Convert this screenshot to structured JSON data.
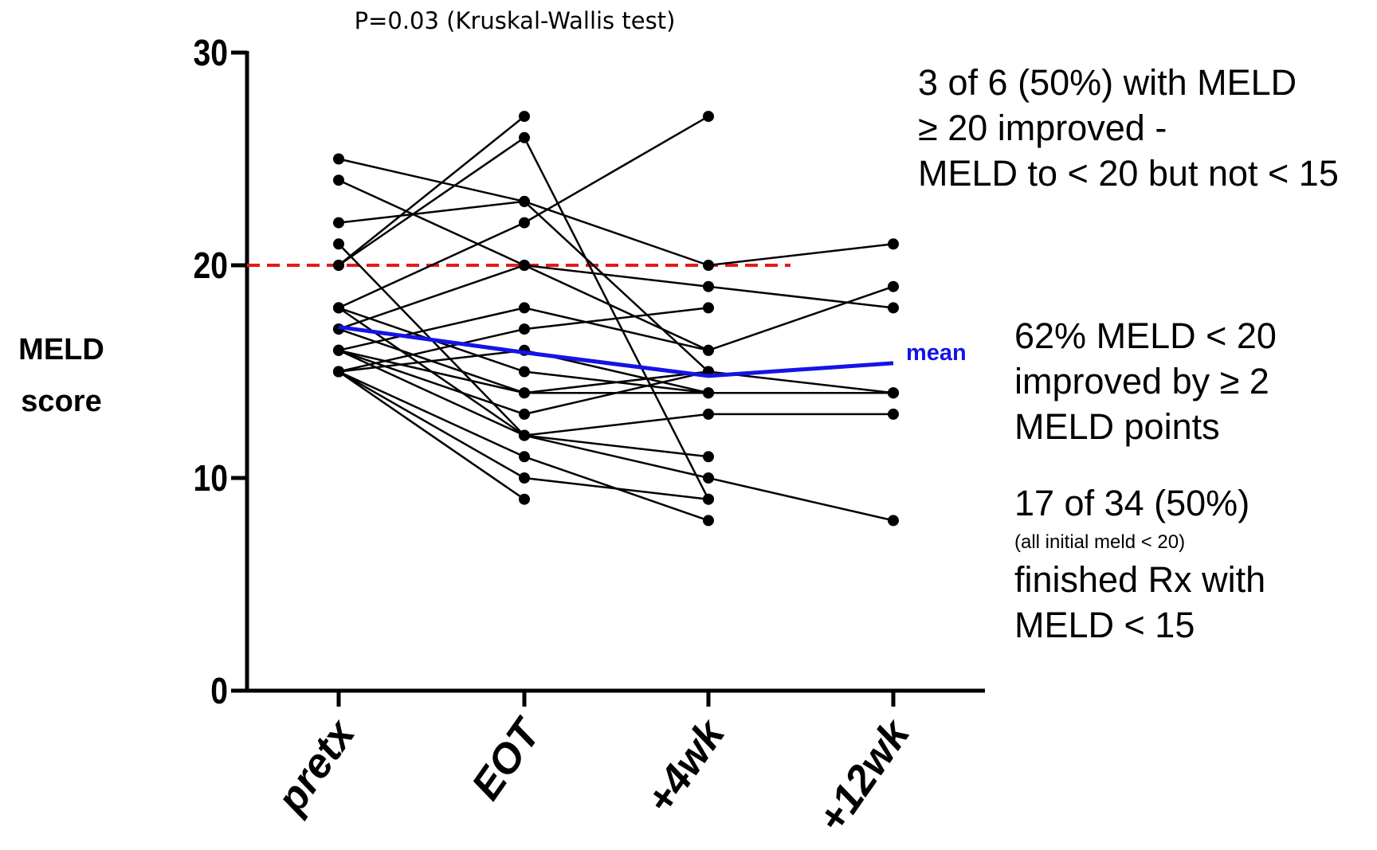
{
  "chart_data": {
    "type": "paired-line",
    "title": "P=0.03 (Kruskal-Wallis test)",
    "y_label": [
      "MELD",
      "score"
    ],
    "categories": [
      "pretx",
      "EOT",
      "+4wk",
      "+12wk"
    ],
    "ylim": [
      0,
      30
    ],
    "yticks": [
      0,
      10,
      20,
      30
    ],
    "line_color": "#000000",
    "series": [
      {
        "values": [
          25,
          23,
          20,
          21
        ]
      },
      {
        "values": [
          24,
          20,
          16,
          19
        ]
      },
      {
        "values": [
          22,
          23,
          15,
          14
        ]
      },
      {
        "values": [
          21,
          12,
          11,
          null
        ]
      },
      {
        "values": [
          20,
          27,
          null,
          null
        ]
      },
      {
        "values": [
          20,
          26,
          9,
          null
        ]
      },
      {
        "values": [
          18,
          22,
          27,
          null
        ]
      },
      {
        "values": [
          18,
          15,
          14,
          14
        ]
      },
      {
        "values": [
          18,
          12,
          13,
          13
        ]
      },
      {
        "values": [
          17,
          20,
          19,
          18
        ]
      },
      {
        "values": [
          17,
          14,
          15,
          null
        ]
      },
      {
        "values": [
          16,
          18,
          16,
          null
        ]
      },
      {
        "values": [
          16,
          13,
          15,
          null
        ]
      },
      {
        "values": [
          16,
          12,
          10,
          8
        ]
      },
      {
        "values": [
          15,
          17,
          18,
          null
        ]
      },
      {
        "values": [
          15,
          16,
          14,
          null
        ]
      },
      {
        "values": [
          15,
          11,
          8,
          null
        ]
      },
      {
        "values": [
          15,
          10,
          9,
          null
        ]
      },
      {
        "values": [
          15,
          9,
          null,
          null
        ]
      },
      {
        "values": [
          16,
          14,
          14,
          14
        ]
      }
    ],
    "mean": {
      "name": "mean",
      "color": "#1414e6",
      "values": [
        17.1,
        15.9,
        14.8,
        15.4
      ]
    },
    "reference_line": {
      "value": 20,
      "color": "#e31a1c"
    },
    "annotations": [
      [
        "3 of 6 (50%) with MELD",
        "≥ 20 improved -",
        "MELD to < 20 but not < 15"
      ],
      [
        "62% MELD < 20",
        "improved by ≥ 2",
        "MELD points"
      ],
      [
        "17 of 34  (50%)",
        "(all initial meld < 20)",
        "finished Rx with",
        "MELD < 15"
      ]
    ]
  }
}
